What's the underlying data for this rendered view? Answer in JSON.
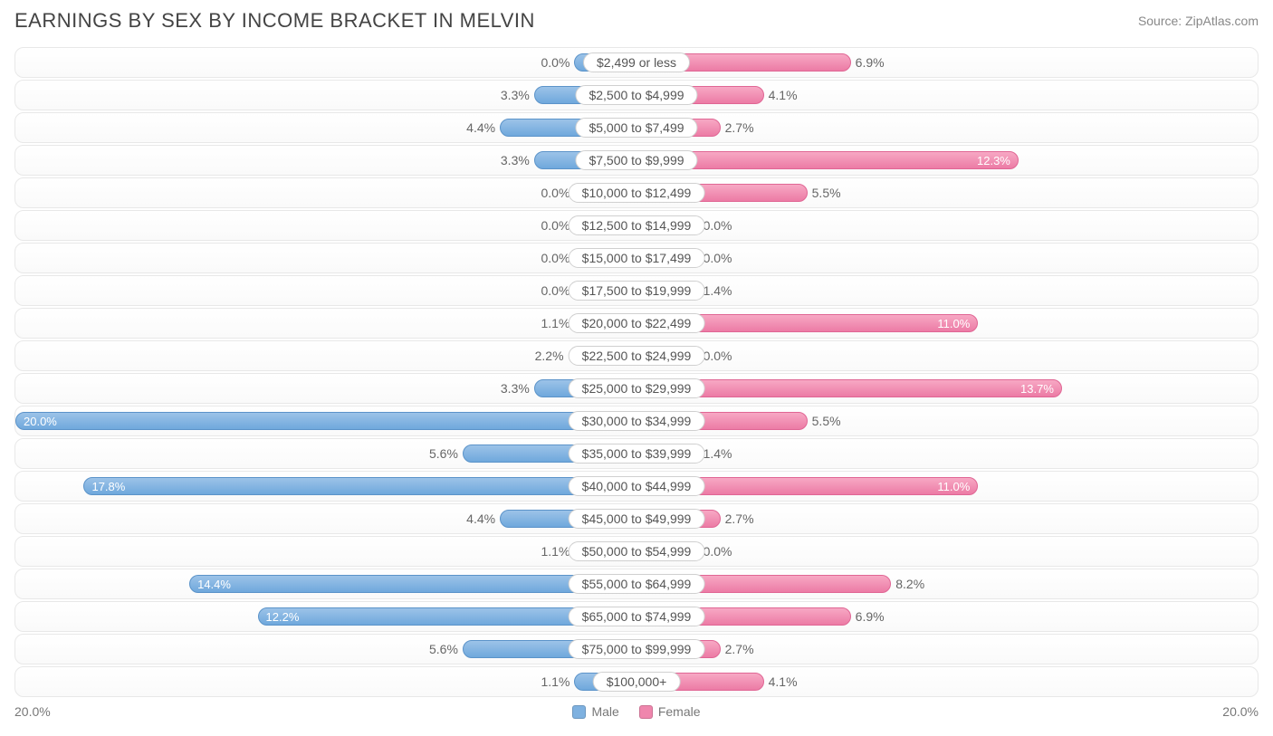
{
  "title": "EARNINGS BY SEX BY INCOME BRACKET IN MELVIN",
  "source": "Source: ZipAtlas.com",
  "chart": {
    "type": "diverging-bar",
    "max_pct": 20.0,
    "min_bar_pct": 2.0,
    "axis_left_label": "20.0%",
    "axis_right_label": "20.0%",
    "inner_label_threshold": 10.0,
    "colors": {
      "male_fill_top": "#9cc3e8",
      "male_fill_bottom": "#6fa8dc",
      "male_border": "#5b93c9",
      "female_fill_top": "#f7a8c4",
      "female_fill_bottom": "#ec7ba5",
      "female_border": "#e06694",
      "row_border": "#e8e8e8",
      "background": "#ffffff",
      "text": "#666666"
    },
    "legend": {
      "male": "Male",
      "female": "Female"
    },
    "rows": [
      {
        "label": "$2,499 or less",
        "male": 0.0,
        "female": 6.9
      },
      {
        "label": "$2,500 to $4,999",
        "male": 3.3,
        "female": 4.1
      },
      {
        "label": "$5,000 to $7,499",
        "male": 4.4,
        "female": 2.7
      },
      {
        "label": "$7,500 to $9,999",
        "male": 3.3,
        "female": 12.3
      },
      {
        "label": "$10,000 to $12,499",
        "male": 0.0,
        "female": 5.5
      },
      {
        "label": "$12,500 to $14,999",
        "male": 0.0,
        "female": 0.0
      },
      {
        "label": "$15,000 to $17,499",
        "male": 0.0,
        "female": 0.0
      },
      {
        "label": "$17,500 to $19,999",
        "male": 0.0,
        "female": 1.4
      },
      {
        "label": "$20,000 to $22,499",
        "male": 1.1,
        "female": 11.0
      },
      {
        "label": "$22,500 to $24,999",
        "male": 2.2,
        "female": 0.0
      },
      {
        "label": "$25,000 to $29,999",
        "male": 3.3,
        "female": 13.7
      },
      {
        "label": "$30,000 to $34,999",
        "male": 20.0,
        "female": 5.5
      },
      {
        "label": "$35,000 to $39,999",
        "male": 5.6,
        "female": 1.4
      },
      {
        "label": "$40,000 to $44,999",
        "male": 17.8,
        "female": 11.0
      },
      {
        "label": "$45,000 to $49,999",
        "male": 4.4,
        "female": 2.7
      },
      {
        "label": "$50,000 to $54,999",
        "male": 1.1,
        "female": 0.0
      },
      {
        "label": "$55,000 to $64,999",
        "male": 14.4,
        "female": 8.2
      },
      {
        "label": "$65,000 to $74,999",
        "male": 12.2,
        "female": 6.9
      },
      {
        "label": "$75,000 to $99,999",
        "male": 5.6,
        "female": 2.7
      },
      {
        "label": "$100,000+",
        "male": 1.1,
        "female": 4.1
      }
    ]
  }
}
